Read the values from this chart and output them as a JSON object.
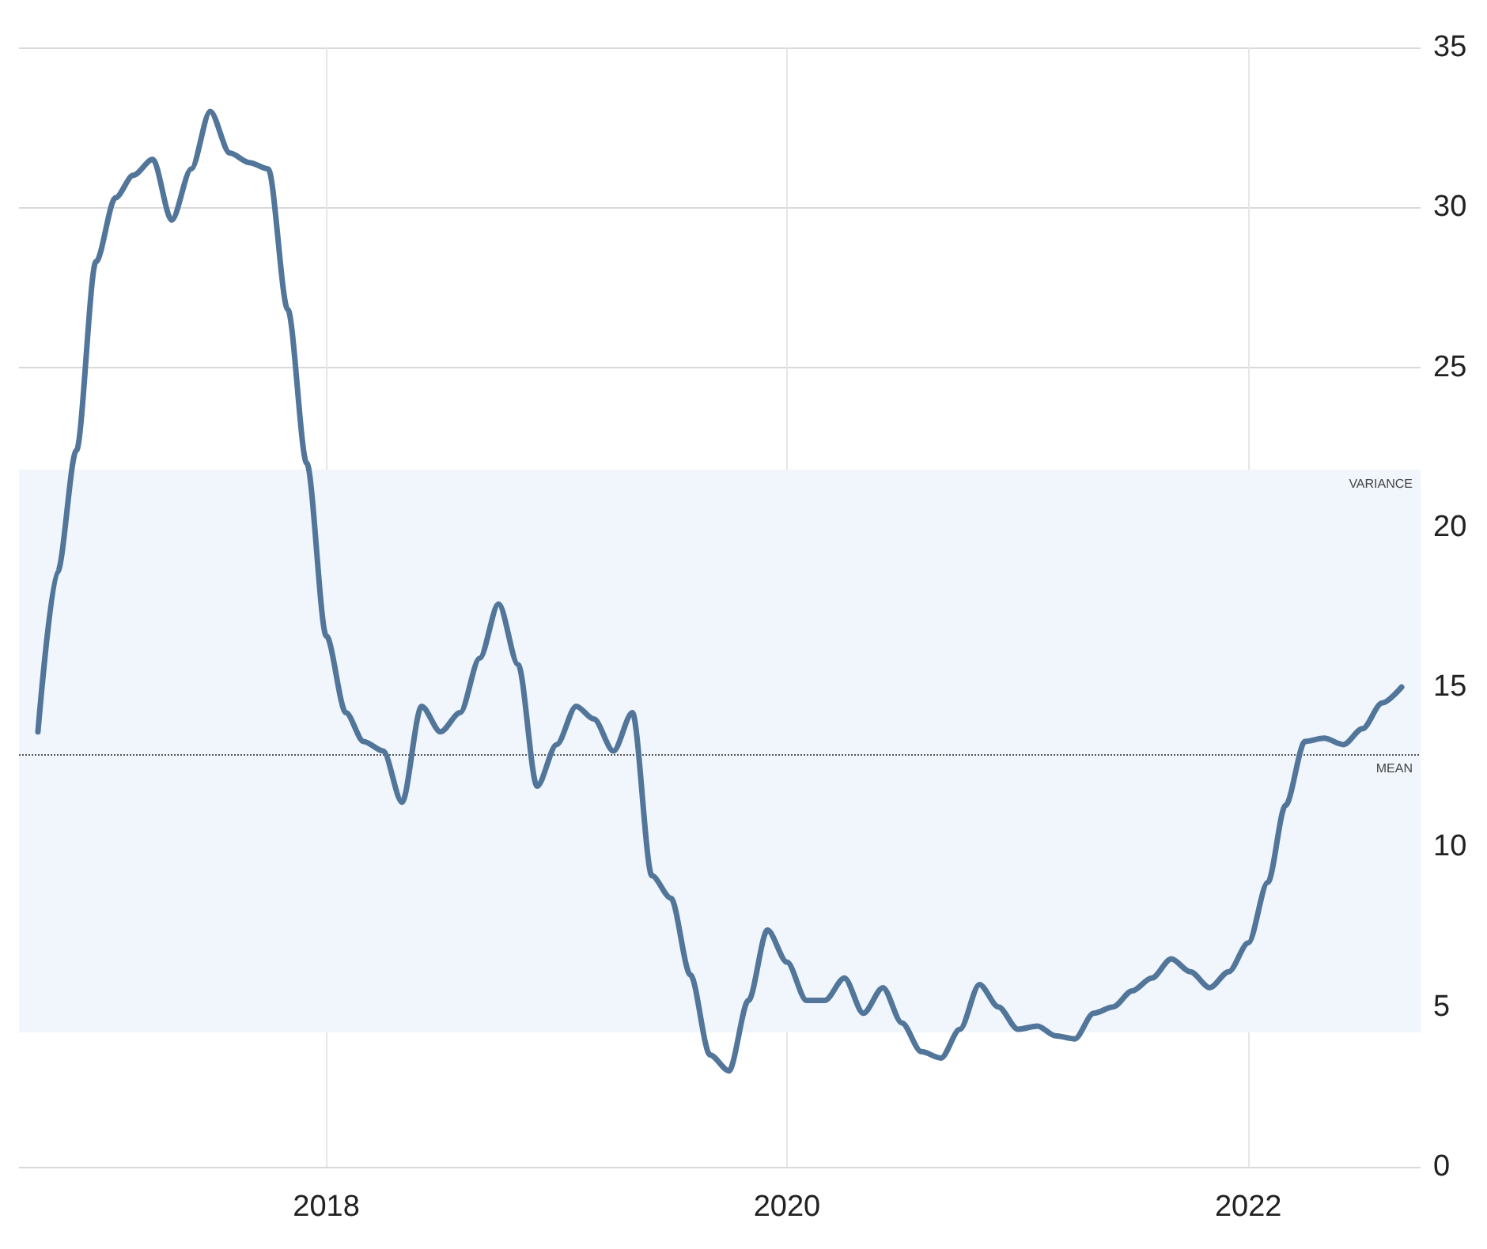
{
  "chart_data": {
    "type": "line",
    "x": [
      "2016-10",
      "2016-11",
      "2016-12",
      "2017-01",
      "2017-02",
      "2017-03",
      "2017-04",
      "2017-05",
      "2017-06",
      "2017-07",
      "2017-08",
      "2017-09",
      "2017-10",
      "2017-11",
      "2017-12",
      "2018-01",
      "2018-02",
      "2018-03",
      "2018-04",
      "2018-05",
      "2018-06",
      "2018-07",
      "2018-08",
      "2018-09",
      "2018-10",
      "2018-11",
      "2018-12",
      "2019-01",
      "2019-02",
      "2019-03",
      "2019-04",
      "2019-05",
      "2019-06",
      "2019-07",
      "2019-08",
      "2019-09",
      "2019-10",
      "2019-11",
      "2019-12",
      "2020-01",
      "2020-02",
      "2020-03",
      "2020-04",
      "2020-05",
      "2020-06",
      "2020-07",
      "2020-08",
      "2020-09",
      "2020-10",
      "2020-11",
      "2020-12",
      "2021-01",
      "2021-02",
      "2021-03",
      "2021-04",
      "2021-05",
      "2021-06",
      "2021-07",
      "2021-08",
      "2021-09",
      "2021-10",
      "2021-11",
      "2021-12",
      "2022-01",
      "2022-02",
      "2022-03",
      "2022-04",
      "2022-05",
      "2022-06",
      "2022-07",
      "2022-08",
      "2022-09"
    ],
    "series": [
      {
        "color": "#52759a",
        "values": [
          13.6,
          18.6,
          22.4,
          28.3,
          30.3,
          31.0,
          31.5,
          29.6,
          31.2,
          33.0,
          31.7,
          31.4,
          31.2,
          26.8,
          22.0,
          16.6,
          14.2,
          13.3,
          13.0,
          11.4,
          14.4,
          13.6,
          14.2,
          15.9,
          17.6,
          15.7,
          11.9,
          13.2,
          14.4,
          14.0,
          13.0,
          14.2,
          9.1,
          8.4,
          6.0,
          3.5,
          3.0,
          5.2,
          7.4,
          6.4,
          5.2,
          5.2,
          5.9,
          4.8,
          5.6,
          4.5,
          3.6,
          3.4,
          4.3,
          5.7,
          5.0,
          4.3,
          4.4,
          4.1,
          4.0,
          4.8,
          5.0,
          5.5,
          5.9,
          6.5,
          6.1,
          5.6,
          6.1,
          7.0,
          8.9,
          11.3,
          13.3,
          13.4,
          13.2,
          13.7,
          14.5,
          15.0
        ]
      }
    ],
    "xlim": [
      "2016-09",
      "2022-10"
    ],
    "xticks": [
      "2018",
      "2020",
      "2022"
    ],
    "ylim": [
      0,
      35
    ],
    "yticks": [
      0,
      5,
      10,
      15,
      20,
      25,
      30,
      35
    ],
    "grid": true,
    "marker": "none",
    "line_style": "solid",
    "ref_lines": [
      {
        "axis": "y",
        "value": 12.9,
        "label": "MEAN",
        "color": "#555555",
        "line_style": "dotted"
      }
    ],
    "bands": [
      {
        "axis": "y",
        "from": 4.2,
        "to": 21.8,
        "label": "VARIANCE",
        "color": "#f0f6fc"
      }
    ]
  }
}
